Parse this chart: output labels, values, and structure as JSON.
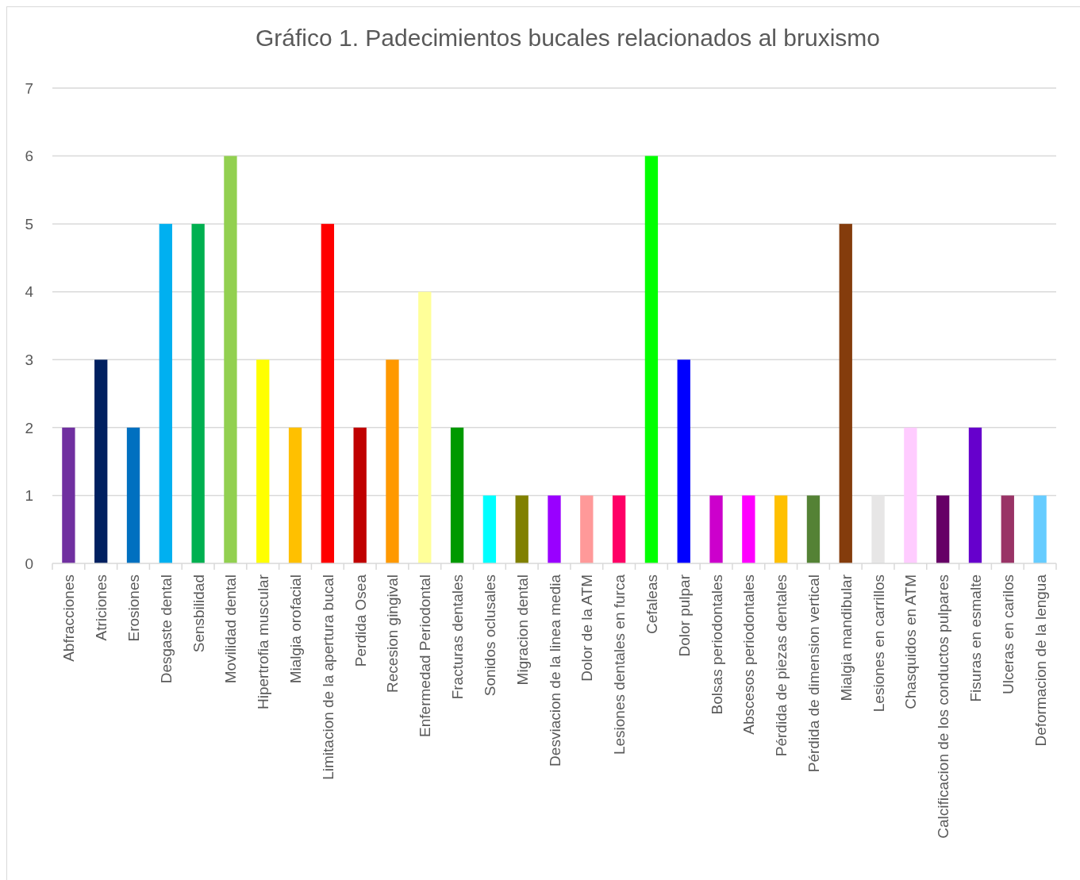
{
  "chart_data": {
    "type": "bar",
    "title": "Gráfico 1. Padecimientos bucales relacionados al bruxismo",
    "categories": [
      "Abfracciones",
      "Atriciones",
      "Erosiones",
      "Desgaste dental",
      "Sensbilidad",
      "Movilidad dental",
      "Hipertrofia muscular",
      "Mialgia orofacial",
      "Limitacion de la apertura bucal",
      "Perdida Osea",
      "Recesion gingival",
      "Enfermedad Periodontal",
      "Fracturas dentales",
      "Sonidos oclusales",
      "Migracion dental",
      "Desviacion de la linea media",
      "Dolor de la ATM",
      "Lesiones dentales en furca",
      "Cefaleas",
      "Dolor pulpar",
      "Bolsas periodontales",
      "Abscesos periodontales",
      "Pérdida de piezas dentales",
      "Pérdida de dimension vertical",
      "Mialgia mandibular",
      "Lesiones en carrillos",
      "Chasquidos en ATM",
      "Calcificacion de los conductos pulpares",
      "Fisuras en esmalte",
      "Ulceras en carilos",
      "Deformacion de la lengua"
    ],
    "values": [
      2,
      3,
      2,
      5,
      5,
      6,
      3,
      2,
      5,
      2,
      3,
      4,
      2,
      1,
      1,
      1,
      1,
      1,
      6,
      3,
      1,
      1,
      1,
      1,
      5,
      1,
      2,
      1,
      2,
      1,
      1
    ],
    "colors": [
      "#7030a0",
      "#002060",
      "#0070c0",
      "#00b0f0",
      "#00b050",
      "#92d050",
      "#ffff00",
      "#ffc000",
      "#ff0000",
      "#c00000",
      "#ff9900",
      "#ffff99",
      "#009900",
      "#00ffff",
      "#808000",
      "#9900ff",
      "#ff9999",
      "#ff0066",
      "#00ff00",
      "#0000ff",
      "#cc00cc",
      "#ff00ff",
      "#ffc000",
      "#548235",
      "#843c0c",
      "#e7e6e6",
      "#ffccff",
      "#660066",
      "#6600cc",
      "#993366",
      "#66ccff"
    ],
    "ylim": [
      0,
      7
    ],
    "yticks": [
      0,
      1,
      2,
      3,
      4,
      5,
      6,
      7
    ],
    "grid": "y"
  }
}
